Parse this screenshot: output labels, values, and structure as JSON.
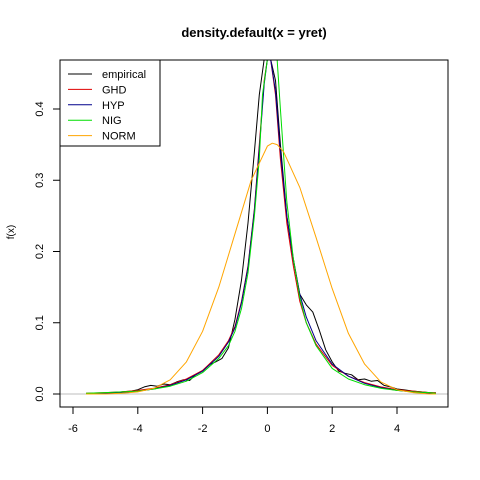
{
  "chart_data": {
    "type": "line",
    "title": "density.default(x = yret)",
    "xlabel": "",
    "ylabel": "f(x)",
    "xlim": [
      -6,
      5.5
    ],
    "ylim": [
      -0.015,
      0.47
    ],
    "x_ticks": [
      "-6",
      "-4",
      "-2",
      "0",
      "2",
      "4"
    ],
    "y_ticks": [
      "0.0",
      "0.1",
      "0.2",
      "0.3",
      "0.4"
    ],
    "grid": false,
    "legend_position": "top-left",
    "baseline_color": "#bebebe",
    "series": [
      {
        "name": "empirical",
        "color": "#000000",
        "x": [
          -5.6,
          -5.0,
          -4.5,
          -4.2,
          -4.0,
          -3.8,
          -3.6,
          -3.4,
          -3.2,
          -3.0,
          -2.8,
          -2.6,
          -2.4,
          -2.2,
          -2.0,
          -1.8,
          -1.6,
          -1.4,
          -1.2,
          -1.0,
          -0.8,
          -0.6,
          -0.4,
          -0.25,
          -0.1,
          0.0,
          0.1,
          0.25,
          0.4,
          0.6,
          0.8,
          1.0,
          1.2,
          1.4,
          1.6,
          1.8,
          2.0,
          2.2,
          2.4,
          2.6,
          2.8,
          3.0,
          3.2,
          3.4,
          3.6,
          3.8,
          4.0,
          4.2,
          4.5,
          5.0,
          5.2
        ],
        "y": [
          0.0,
          0.001,
          0.003,
          0.004,
          0.006,
          0.01,
          0.012,
          0.011,
          0.014,
          0.013,
          0.017,
          0.02,
          0.019,
          0.028,
          0.033,
          0.041,
          0.045,
          0.05,
          0.065,
          0.105,
          0.16,
          0.24,
          0.34,
          0.42,
          0.47,
          0.47,
          0.47,
          0.44,
          0.35,
          0.25,
          0.19,
          0.14,
          0.125,
          0.115,
          0.09,
          0.062,
          0.045,
          0.032,
          0.029,
          0.027,
          0.02,
          0.021,
          0.018,
          0.019,
          0.012,
          0.01,
          0.007,
          0.006,
          0.004,
          0.002,
          0.001
        ]
      },
      {
        "name": "GHD",
        "color": "#df0000",
        "x": [
          -5.6,
          -5.0,
          -4.5,
          -4.0,
          -3.5,
          -3.0,
          -2.5,
          -2.0,
          -1.5,
          -1.2,
          -1.0,
          -0.8,
          -0.6,
          -0.4,
          -0.25,
          -0.1,
          0.0,
          0.1,
          0.25,
          0.4,
          0.6,
          0.8,
          1.0,
          1.2,
          1.5,
          2.0,
          2.5,
          3.0,
          3.5,
          4.0,
          4.5,
          5.0,
          5.2
        ],
        "y": [
          0.001,
          0.002,
          0.003,
          0.005,
          0.008,
          0.013,
          0.021,
          0.033,
          0.055,
          0.075,
          0.095,
          0.13,
          0.18,
          0.26,
          0.35,
          0.44,
          0.47,
          0.47,
          0.42,
          0.33,
          0.24,
          0.18,
          0.13,
          0.1,
          0.07,
          0.04,
          0.025,
          0.016,
          0.01,
          0.006,
          0.004,
          0.002,
          0.002
        ]
      },
      {
        "name": "HYP",
        "color": "#00008b",
        "x": [
          -5.6,
          -5.0,
          -4.5,
          -4.0,
          -3.5,
          -3.0,
          -2.5,
          -2.0,
          -1.5,
          -1.2,
          -1.0,
          -0.8,
          -0.6,
          -0.4,
          -0.25,
          -0.1,
          0.0,
          0.1,
          0.25,
          0.4,
          0.6,
          0.8,
          1.0,
          1.2,
          1.5,
          2.0,
          2.5,
          3.0,
          3.5,
          4.0,
          4.5,
          5.0,
          5.2
        ],
        "y": [
          0.0,
          0.001,
          0.002,
          0.004,
          0.007,
          0.012,
          0.02,
          0.032,
          0.053,
          0.073,
          0.093,
          0.128,
          0.178,
          0.258,
          0.345,
          0.435,
          0.47,
          0.47,
          0.425,
          0.34,
          0.25,
          0.188,
          0.14,
          0.108,
          0.075,
          0.042,
          0.025,
          0.015,
          0.009,
          0.005,
          0.003,
          0.001,
          0.001
        ]
      },
      {
        "name": "NIG",
        "color": "#00dd00",
        "x": [
          -5.6,
          -5.0,
          -4.5,
          -4.0,
          -3.5,
          -3.0,
          -2.5,
          -2.0,
          -1.5,
          -1.2,
          -1.0,
          -0.8,
          -0.6,
          -0.4,
          -0.25,
          -0.15,
          0.0,
          0.15,
          0.3,
          0.4,
          0.6,
          0.8,
          1.0,
          1.2,
          1.5,
          2.0,
          2.5,
          3.0,
          3.5,
          4.0,
          4.5,
          5.0,
          5.2
        ],
        "y": [
          0.001,
          0.002,
          0.003,
          0.004,
          0.007,
          0.011,
          0.018,
          0.03,
          0.05,
          0.068,
          0.088,
          0.12,
          0.17,
          0.25,
          0.33,
          0.42,
          0.47,
          0.47,
          0.47,
          0.4,
          0.27,
          0.19,
          0.135,
          0.1,
          0.068,
          0.036,
          0.021,
          0.013,
          0.008,
          0.005,
          0.003,
          0.002,
          0.001
        ]
      },
      {
        "name": "NORM",
        "color": "#ffa500",
        "x": [
          -5.6,
          -5.0,
          -4.5,
          -4.0,
          -3.5,
          -3.0,
          -2.5,
          -2.0,
          -1.5,
          -1.0,
          -0.5,
          0.0,
          0.15,
          0.3,
          0.5,
          1.0,
          1.5,
          2.0,
          2.5,
          3.0,
          3.5,
          4.0,
          4.5,
          5.0,
          5.2
        ],
        "y": [
          0.0,
          0.0,
          0.001,
          0.003,
          0.008,
          0.02,
          0.045,
          0.088,
          0.15,
          0.225,
          0.3,
          0.348,
          0.352,
          0.35,
          0.34,
          0.29,
          0.22,
          0.148,
          0.085,
          0.042,
          0.017,
          0.006,
          0.002,
          0.0,
          0.0
        ]
      }
    ]
  }
}
